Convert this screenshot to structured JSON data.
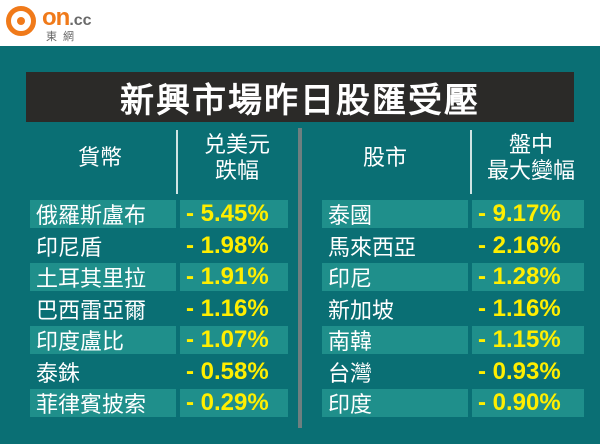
{
  "logo": {
    "brand_on": "on",
    "brand_cc": ".cc",
    "sub": "東網"
  },
  "title": "新興市場昨日股匯受壓",
  "left_table": {
    "col1_header": "貨幣",
    "col2_header_line1": "兑美元",
    "col2_header_line2": "跌幅",
    "rows": [
      {
        "name": "俄羅斯盧布",
        "value": "- 5.45%"
      },
      {
        "name": "印尼盾",
        "value": "- 1.98%"
      },
      {
        "name": "土耳其里拉",
        "value": "- 1.91%"
      },
      {
        "name": "巴西雷亞爾",
        "value": "- 1.16%"
      },
      {
        "name": "印度盧比",
        "value": "- 1.07%"
      },
      {
        "name": "泰銖",
        "value": "- 0.58%"
      },
      {
        "name": "菲律賓披索",
        "value": "- 0.29%"
      }
    ]
  },
  "right_table": {
    "col1_header": "股市",
    "col2_header_line1": "盤中",
    "col2_header_line2": "最大變幅",
    "rows": [
      {
        "name": "泰國",
        "value": "- 9.17%"
      },
      {
        "name": "馬來西亞",
        "value": "- 2.16%"
      },
      {
        "name": "印尼",
        "value": "- 1.28%"
      },
      {
        "name": "新加坡",
        "value": "- 1.16%"
      },
      {
        "name": "南韓",
        "value": "- 1.15%"
      },
      {
        "name": "台灣",
        "value": "- 0.93%"
      },
      {
        "name": "印度",
        "value": "- 0.90%"
      }
    ]
  },
  "colors": {
    "panel_bg": "#0a6f74",
    "row_alt_bg": "#1f8f8b",
    "title_bg": "#2b2a28",
    "value_text": "#ffee00",
    "logo_orange": "#f07a1a"
  }
}
